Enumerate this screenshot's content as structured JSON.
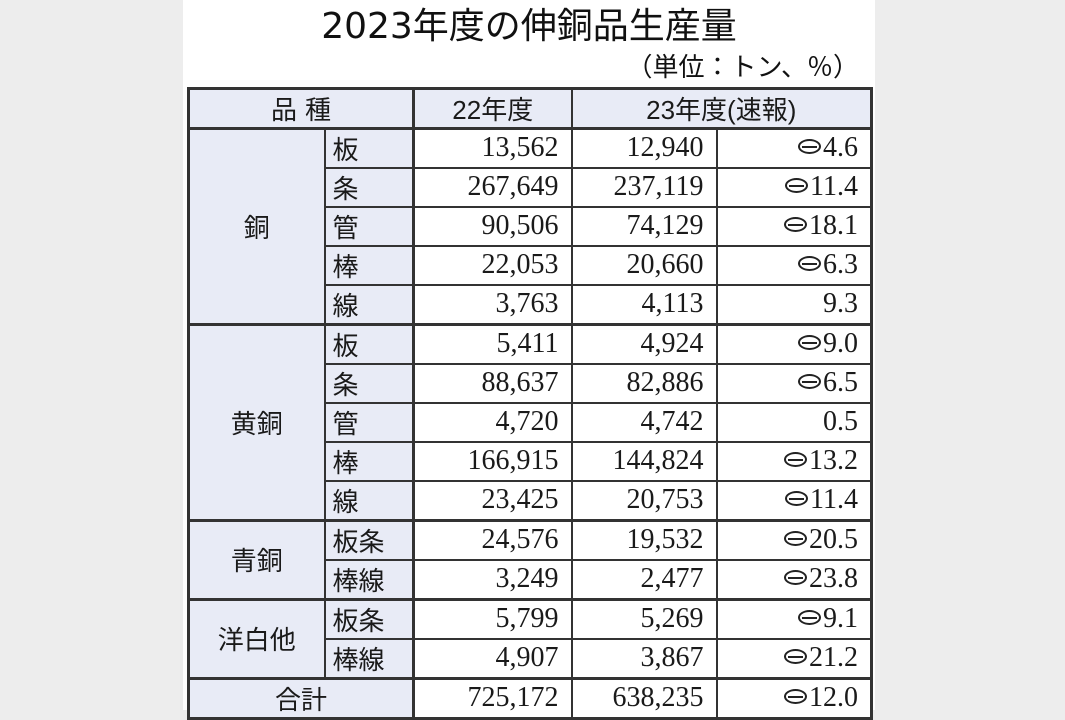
{
  "title": "2023年度の伸銅品生産量",
  "units_note": "（単位：トン、％）",
  "colors": {
    "page_margin": "#EDEDED",
    "sheet_bg": "#FFFFFF",
    "header_cell_bg": "#E8EBF6",
    "border": "#333333"
  },
  "table": {
    "header": {
      "kind": "品種",
      "fy22": "22年度",
      "fy23": "23年度(速報)"
    },
    "groups": [
      {
        "name": "銅",
        "rows": [
          {
            "type": "板",
            "fy22": "13,562",
            "fy23": "12,940",
            "change": "⊖4.6"
          },
          {
            "type": "条",
            "fy22": "267,649",
            "fy23": "237,119",
            "change": "⊖11.4"
          },
          {
            "type": "管",
            "fy22": "90,506",
            "fy23": "74,129",
            "change": "⊖18.1"
          },
          {
            "type": "棒",
            "fy22": "22,053",
            "fy23": "20,660",
            "change": "⊖6.3"
          },
          {
            "type": "線",
            "fy22": "3,763",
            "fy23": "4,113",
            "change": "9.3"
          }
        ]
      },
      {
        "name": "黄銅",
        "rows": [
          {
            "type": "板",
            "fy22": "5,411",
            "fy23": "4,924",
            "change": "⊖9.0"
          },
          {
            "type": "条",
            "fy22": "88,637",
            "fy23": "82,886",
            "change": "⊖6.5"
          },
          {
            "type": "管",
            "fy22": "4,720",
            "fy23": "4,742",
            "change": "0.5"
          },
          {
            "type": "棒",
            "fy22": "166,915",
            "fy23": "144,824",
            "change": "⊖13.2"
          },
          {
            "type": "線",
            "fy22": "23,425",
            "fy23": "20,753",
            "change": "⊖11.4"
          }
        ]
      },
      {
        "name": "青銅",
        "rows": [
          {
            "type": "板条",
            "fy22": "24,576",
            "fy23": "19,532",
            "change": "⊖20.5"
          },
          {
            "type": "棒線",
            "fy22": "3,249",
            "fy23": "2,477",
            "change": "⊖23.8"
          }
        ]
      },
      {
        "name": "洋白他",
        "rows": [
          {
            "type": "板条",
            "fy22": "5,799",
            "fy23": "5,269",
            "change": "⊖9.1"
          },
          {
            "type": "棒線",
            "fy22": "4,907",
            "fy23": "3,867",
            "change": "⊖21.2"
          }
        ]
      }
    ],
    "total": {
      "label": "合計",
      "fy22": "725,172",
      "fy23": "638,235",
      "change": "⊖12.0"
    }
  }
}
